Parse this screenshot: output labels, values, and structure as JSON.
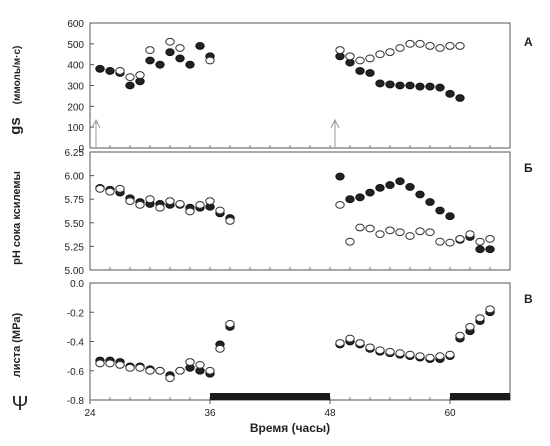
{
  "chart_data": [
    {
      "type": "scatter",
      "panel_letter": "А",
      "ylabel_main": "gs",
      "ylabel_unit": "(ммоль/м·с)",
      "ylim": [
        0,
        600
      ],
      "yticks": [
        0,
        100,
        200,
        300,
        400,
        500,
        600
      ],
      "xlim": [
        24,
        66
      ],
      "arrows_at_x": [
        24.6,
        48.5
      ],
      "series": [
        {
          "marker": "filled",
          "points": [
            [
              25,
              380
            ],
            [
              26,
              370
            ],
            [
              27,
              360
            ],
            [
              28,
              300
            ],
            [
              29,
              320
            ],
            [
              30,
              420
            ],
            [
              31,
              400
            ],
            [
              32,
              460
            ],
            [
              33,
              430
            ],
            [
              34,
              400
            ],
            [
              35,
              490
            ],
            [
              36,
              440
            ],
            [
              49,
              440
            ],
            [
              50,
              410
            ],
            [
              51,
              370
            ],
            [
              52,
              360
            ],
            [
              53,
              310
            ],
            [
              54,
              305
            ],
            [
              55,
              300
            ],
            [
              56,
              300
            ],
            [
              57,
              295
            ],
            [
              58,
              295
            ],
            [
              59,
              290
            ],
            [
              60,
              260
            ],
            [
              61,
              240
            ]
          ]
        },
        {
          "marker": "open",
          "points": [
            [
              27,
              370
            ],
            [
              28,
              340
            ],
            [
              29,
              350
            ],
            [
              30,
              470
            ],
            [
              32,
              510
            ],
            [
              33,
              480
            ],
            [
              36,
              420
            ],
            [
              49,
              470
            ],
            [
              50,
              440
            ],
            [
              51,
              420
            ],
            [
              52,
              430
            ],
            [
              53,
              450
            ],
            [
              54,
              460
            ],
            [
              55,
              480
            ],
            [
              56,
              500
            ],
            [
              57,
              500
            ],
            [
              58,
              490
            ],
            [
              59,
              480
            ],
            [
              60,
              490
            ],
            [
              61,
              490
            ]
          ]
        }
      ]
    },
    {
      "type": "scatter",
      "panel_letter": "Б",
      "ylabel": "pH сока ксилемы",
      "ylim": [
        5.0,
        6.25
      ],
      "yticks": [
        "5.00",
        "5.25",
        "5.50",
        "5.75",
        "6.00",
        "6.25"
      ],
      "xlim": [
        24,
        66
      ],
      "series": [
        {
          "marker": "filled",
          "points": [
            [
              25,
              5.87
            ],
            [
              26,
              5.85
            ],
            [
              27,
              5.82
            ],
            [
              28,
              5.76
            ],
            [
              29,
              5.72
            ],
            [
              30,
              5.7
            ],
            [
              31,
              5.7
            ],
            [
              32,
              5.69
            ],
            [
              33,
              5.69
            ],
            [
              34,
              5.66
            ],
            [
              35,
              5.66
            ],
            [
              36,
              5.67
            ],
            [
              37,
              5.6
            ],
            [
              38,
              5.55
            ],
            [
              49,
              5.99
            ],
            [
              50,
              5.75
            ],
            [
              51,
              5.77
            ],
            [
              52,
              5.82
            ],
            [
              53,
              5.87
            ],
            [
              54,
              5.9
            ],
            [
              55,
              5.94
            ],
            [
              56,
              5.88
            ],
            [
              57,
              5.8
            ],
            [
              58,
              5.72
            ],
            [
              59,
              5.63
            ],
            [
              60,
              5.57
            ],
            [
              61,
              5.32
            ],
            [
              62,
              5.35
            ],
            [
              63,
              5.22
            ],
            [
              64,
              5.22
            ]
          ]
        },
        {
          "marker": "open",
          "points": [
            [
              25,
              5.86
            ],
            [
              26,
              5.83
            ],
            [
              27,
              5.86
            ],
            [
              28,
              5.73
            ],
            [
              29,
              5.69
            ],
            [
              30,
              5.75
            ],
            [
              31,
              5.66
            ],
            [
              32,
              5.73
            ],
            [
              33,
              5.7
            ],
            [
              34,
              5.62
            ],
            [
              35,
              5.69
            ],
            [
              36,
              5.73
            ],
            [
              37,
              5.63
            ],
            [
              38,
              5.52
            ],
            [
              49,
              5.69
            ],
            [
              50,
              5.3
            ],
            [
              51,
              5.45
            ],
            [
              52,
              5.44
            ],
            [
              53,
              5.38
            ],
            [
              54,
              5.42
            ],
            [
              55,
              5.4
            ],
            [
              56,
              5.36
            ],
            [
              57,
              5.41
            ],
            [
              58,
              5.4
            ],
            [
              59,
              5.3
            ],
            [
              60,
              5.29
            ],
            [
              61,
              5.33
            ],
            [
              62,
              5.38
            ],
            [
              63,
              5.3
            ],
            [
              64,
              5.33
            ]
          ]
        }
      ]
    },
    {
      "type": "scatter",
      "panel_letter": "В",
      "ylabel_symbol": "Ψ",
      "ylabel": "листа (MPa)",
      "ylim": [
        -0.8,
        0.0
      ],
      "yticks": [
        "-0.8",
        "-0.6",
        "-0.4",
        "-0.2",
        "0.0"
      ],
      "xlim": [
        24,
        66
      ],
      "xticks": [
        24,
        36,
        48,
        60
      ],
      "xlabel": "Время (часы)",
      "dark_periods": [
        [
          36,
          48
        ],
        [
          60,
          66
        ]
      ],
      "series": [
        {
          "marker": "filled",
          "points": [
            [
              25,
              -0.53
            ],
            [
              26,
              -0.53
            ],
            [
              27,
              -0.54
            ],
            [
              28,
              -0.57
            ],
            [
              29,
              -0.57
            ],
            [
              30,
              -0.59
            ],
            [
              31,
              -0.6
            ],
            [
              32,
              -0.63
            ],
            [
              33,
              -0.6
            ],
            [
              34,
              -0.58
            ],
            [
              35,
              -0.6
            ],
            [
              36,
              -0.62
            ],
            [
              37,
              -0.42
            ],
            [
              38,
              -0.3
            ],
            [
              49,
              -0.42
            ],
            [
              50,
              -0.4
            ],
            [
              51,
              -0.42
            ],
            [
              52,
              -0.45
            ],
            [
              53,
              -0.47
            ],
            [
              54,
              -0.48
            ],
            [
              55,
              -0.49
            ],
            [
              56,
              -0.5
            ],
            [
              57,
              -0.51
            ],
            [
              58,
              -0.52
            ],
            [
              59,
              -0.52
            ],
            [
              60,
              -0.5
            ],
            [
              61,
              -0.38
            ],
            [
              62,
              -0.33
            ],
            [
              63,
              -0.26
            ],
            [
              64,
              -0.2
            ]
          ]
        },
        {
          "marker": "open",
          "points": [
            [
              25,
              -0.55
            ],
            [
              26,
              -0.55
            ],
            [
              27,
              -0.56
            ],
            [
              28,
              -0.58
            ],
            [
              29,
              -0.58
            ],
            [
              30,
              -0.6
            ],
            [
              31,
              -0.6
            ],
            [
              32,
              -0.65
            ],
            [
              33,
              -0.6
            ],
            [
              34,
              -0.54
            ],
            [
              35,
              -0.56
            ],
            [
              36,
              -0.6
            ],
            [
              37,
              -0.45
            ],
            [
              38,
              -0.28
            ],
            [
              49,
              -0.41
            ],
            [
              50,
              -0.38
            ],
            [
              51,
              -0.41
            ],
            [
              52,
              -0.44
            ],
            [
              53,
              -0.46
            ],
            [
              54,
              -0.47
            ],
            [
              55,
              -0.48
            ],
            [
              56,
              -0.49
            ],
            [
              57,
              -0.5
            ],
            [
              58,
              -0.51
            ],
            [
              59,
              -0.5
            ],
            [
              60,
              -0.49
            ],
            [
              61,
              -0.36
            ],
            [
              62,
              -0.3
            ],
            [
              63,
              -0.24
            ],
            [
              64,
              -0.18
            ]
          ]
        }
      ]
    }
  ]
}
